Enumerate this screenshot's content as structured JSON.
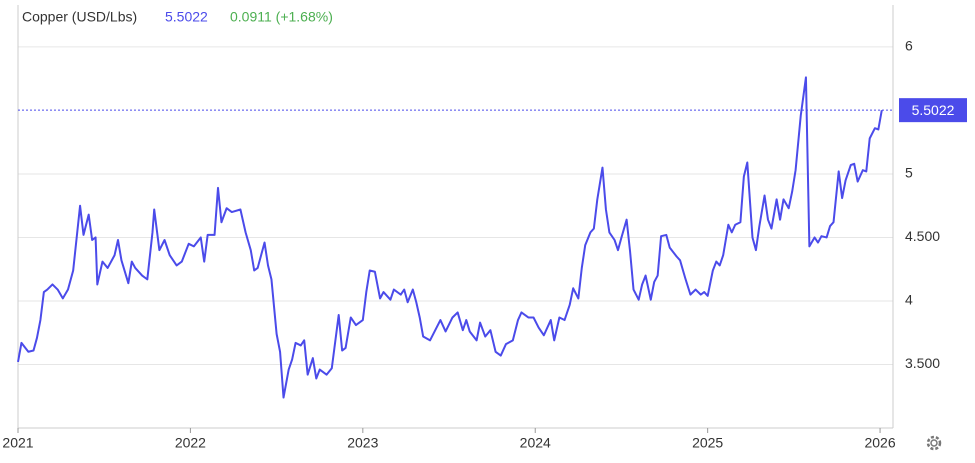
{
  "chart_data": {
    "type": "line",
    "change": "0.0911 (+1.68%)",
    "last": 5.5022,
    "x": [
      2021.0,
      2021.02,
      2021.06,
      2021.09,
      2021.11,
      2021.13,
      2021.15,
      2021.17,
      2021.2,
      2021.23,
      2021.26,
      2021.29,
      2021.32,
      2021.36,
      2021.38,
      2021.41,
      2021.43,
      2021.45,
      2021.46,
      2021.49,
      2021.52,
      2021.56,
      2021.58,
      2021.6,
      2021.64,
      2021.66,
      2021.68,
      2021.72,
      2021.75,
      2021.78,
      2021.79,
      2021.82,
      2021.85,
      2021.88,
      2021.92,
      2021.95,
      2021.99,
      2022.02,
      2022.06,
      2022.08,
      2022.1,
      2022.14,
      2022.16,
      2022.18,
      2022.21,
      2022.24,
      2022.29,
      2022.32,
      2022.35,
      2022.37,
      2022.39,
      2022.43,
      2022.45,
      2022.47,
      2022.5,
      2022.52,
      2022.54,
      2022.57,
      2022.59,
      2022.61,
      2022.64,
      2022.66,
      2022.68,
      2022.71,
      2022.73,
      2022.75,
      2022.79,
      2022.82,
      2022.86,
      2022.88,
      2022.9,
      2022.93,
      2022.96,
      2023.0,
      2023.02,
      2023.04,
      2023.07,
      2023.1,
      2023.12,
      2023.16,
      2023.18,
      2023.22,
      2023.24,
      2023.26,
      2023.29,
      2023.31,
      2023.33,
      2023.35,
      2023.39,
      2023.42,
      2023.45,
      2023.48,
      2023.52,
      2023.55,
      2023.58,
      2023.6,
      2023.62,
      2023.66,
      2023.68,
      2023.71,
      2023.74,
      2023.77,
      2023.8,
      2023.83,
      2023.87,
      2023.9,
      2023.92,
      2023.96,
      2023.99,
      2024.02,
      2024.05,
      2024.09,
      2024.11,
      2024.14,
      2024.17,
      2024.2,
      2024.22,
      2024.25,
      2024.27,
      2024.29,
      2024.32,
      2024.34,
      2024.36,
      2024.39,
      2024.41,
      2024.43,
      2024.46,
      2024.48,
      2024.5,
      2024.53,
      2024.55,
      2024.57,
      2024.6,
      2024.62,
      2024.64,
      2024.67,
      2024.69,
      2024.71,
      2024.73,
      2024.76,
      2024.78,
      2024.82,
      2024.84,
      2024.87,
      2024.9,
      2024.93,
      2024.96,
      2024.98,
      2025.0,
      2025.03,
      2025.05,
      2025.07,
      2025.09,
      2025.12,
      2025.14,
      2025.16,
      2025.19,
      2025.21,
      2025.23,
      2025.26,
      2025.28,
      2025.3,
      2025.33,
      2025.35,
      2025.37,
      2025.4,
      2025.42,
      2025.44,
      2025.47,
      2025.49,
      2025.51,
      2025.54,
      2025.56,
      2025.57,
      2025.59,
      2025.62,
      2025.64,
      2025.66,
      2025.69,
      2025.71,
      2025.73,
      2025.76,
      2025.78,
      2025.8,
      2025.83,
      2025.85,
      2025.87,
      2025.9,
      2025.92,
      2025.94,
      2025.97,
      2025.99,
      2026.01
    ],
    "series": [
      {
        "name": "Copper (USD/Lbs)",
        "color": "#4b4bea",
        "values": [
          3.52,
          3.67,
          3.6,
          3.61,
          3.71,
          3.85,
          4.07,
          4.09,
          4.13,
          4.09,
          4.02,
          4.09,
          4.24,
          4.75,
          4.52,
          4.68,
          4.48,
          4.5,
          4.13,
          4.31,
          4.26,
          4.36,
          4.48,
          4.32,
          4.14,
          4.31,
          4.26,
          4.2,
          4.17,
          4.54,
          4.72,
          4.4,
          4.48,
          4.36,
          4.28,
          4.31,
          4.45,
          4.43,
          4.5,
          4.31,
          4.52,
          4.52,
          4.89,
          4.62,
          4.73,
          4.7,
          4.72,
          4.54,
          4.4,
          4.24,
          4.26,
          4.46,
          4.28,
          4.17,
          3.74,
          3.6,
          3.24,
          3.46,
          3.54,
          3.67,
          3.65,
          3.69,
          3.42,
          3.55,
          3.39,
          3.46,
          3.42,
          3.47,
          3.89,
          3.61,
          3.63,
          3.87,
          3.81,
          3.85,
          4.07,
          4.24,
          4.23,
          4.02,
          4.07,
          4.01,
          4.09,
          4.05,
          4.09,
          3.99,
          4.09,
          3.99,
          3.87,
          3.72,
          3.69,
          3.77,
          3.85,
          3.76,
          3.87,
          3.91,
          3.77,
          3.85,
          3.76,
          3.69,
          3.83,
          3.72,
          3.77,
          3.6,
          3.57,
          3.66,
          3.69,
          3.85,
          3.91,
          3.87,
          3.87,
          3.79,
          3.73,
          3.85,
          3.69,
          3.87,
          3.85,
          3.97,
          4.1,
          4.02,
          4.26,
          4.44,
          4.54,
          4.57,
          4.8,
          5.05,
          4.72,
          4.54,
          4.48,
          4.4,
          4.5,
          4.64,
          4.39,
          4.09,
          4.01,
          4.13,
          4.2,
          4.01,
          4.15,
          4.2,
          4.51,
          4.52,
          4.42,
          4.35,
          4.32,
          4.18,
          4.05,
          4.09,
          4.05,
          4.07,
          4.04,
          4.24,
          4.31,
          4.28,
          4.36,
          4.6,
          4.54,
          4.6,
          4.62,
          4.98,
          5.09,
          4.5,
          4.4,
          4.59,
          4.83,
          4.64,
          4.57,
          4.8,
          4.64,
          4.8,
          4.73,
          4.86,
          5.03,
          5.46,
          5.66,
          5.76,
          4.43,
          4.5,
          4.46,
          4.51,
          4.5,
          4.59,
          4.62,
          5.02,
          4.81,
          4.95,
          5.07,
          5.08,
          4.94,
          5.03,
          5.02,
          5.28,
          5.36,
          5.35,
          5.5022
        ]
      }
    ],
    "xlim": [
      2021,
      2026.075
    ],
    "xticks": [
      2021,
      2022,
      2023,
      2024,
      2025,
      2026
    ],
    "ylim": [
      3,
      6.33
    ],
    "yticks": [
      {
        "value": 3.5,
        "label": "3.500"
      },
      4,
      {
        "value": 4.5,
        "label": "4.500"
      },
      5,
      6
    ],
    "grid": true
  }
}
